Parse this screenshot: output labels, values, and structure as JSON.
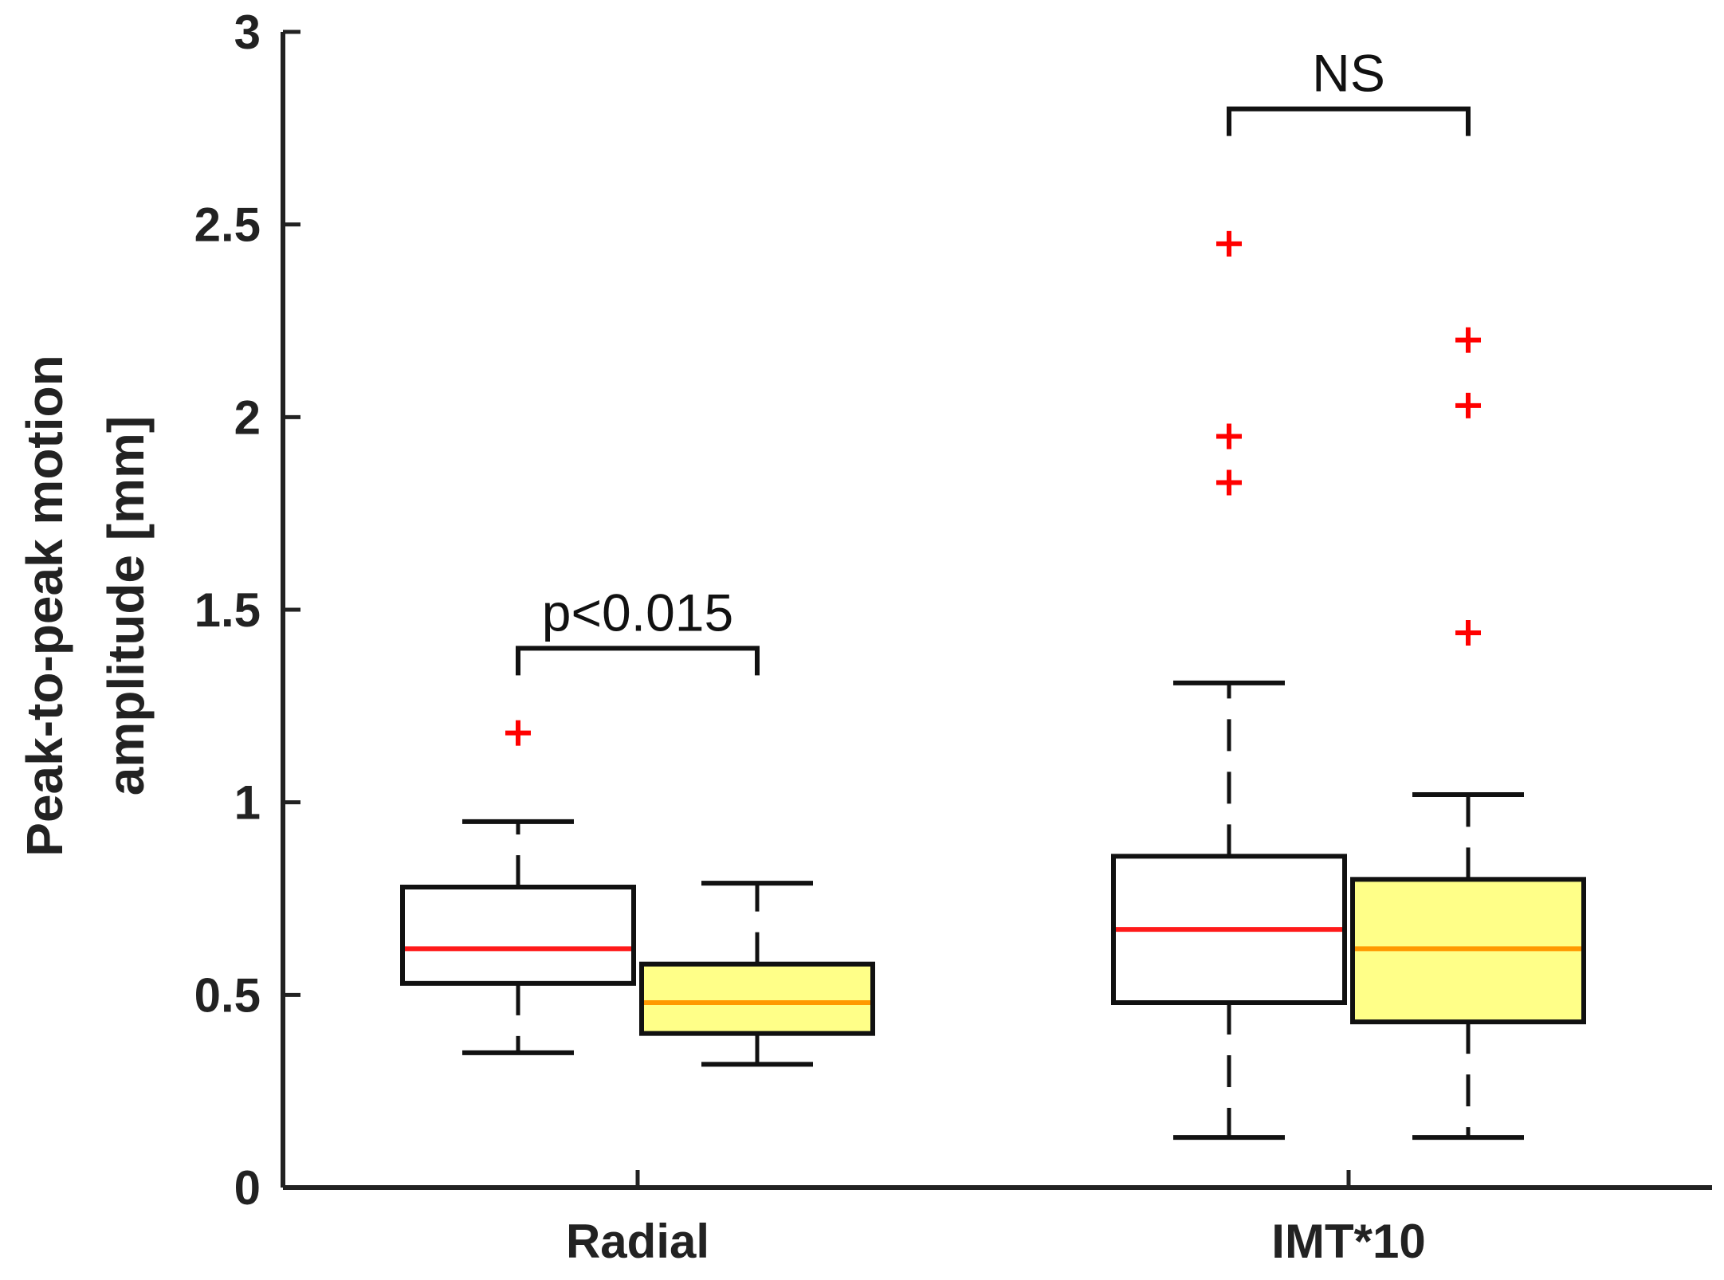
{
  "chart_data": {
    "type": "box",
    "title": "",
    "xlabel": "",
    "ylabel_lines": [
      "Peak-to-peak motion",
      "amplitude [mm]"
    ],
    "ylim": [
      0,
      3
    ],
    "yticks": [
      {
        "value": 0,
        "label": "0"
      },
      {
        "value": 0.5,
        "label": "0.5"
      },
      {
        "value": 1,
        "label": "1"
      },
      {
        "value": 1.5,
        "label": "1.5"
      },
      {
        "value": 2,
        "label": "2"
      },
      {
        "value": 2.5,
        "label": "2.5"
      },
      {
        "value": 3,
        "label": "3"
      }
    ],
    "categories": [
      "Radial",
      "IMT*10"
    ],
    "colors": {
      "axis": "#222222",
      "box_edge": "#111111",
      "group1_fill": "#ffffff",
      "group2_fill": "#ffff88",
      "group1_median": "#ff1a1a",
      "group2_median": "#ff9900",
      "outlier": "#ff0000"
    },
    "boxes": [
      {
        "category": "Radial",
        "group": 1,
        "whisker_low": 0.35,
        "q1": 0.53,
        "median": 0.62,
        "q3": 0.78,
        "whisker_high": 0.95,
        "outliers": [
          1.18
        ]
      },
      {
        "category": "Radial",
        "group": 2,
        "whisker_low": 0.32,
        "q1": 0.4,
        "median": 0.48,
        "q3": 0.58,
        "whisker_high": 0.79,
        "outliers": []
      },
      {
        "category": "IMT*10",
        "group": 1,
        "whisker_low": 0.13,
        "q1": 0.48,
        "median": 0.67,
        "q3": 0.86,
        "whisker_high": 1.31,
        "outliers": [
          2.45,
          1.95,
          1.83
        ]
      },
      {
        "category": "IMT*10",
        "group": 2,
        "whisker_low": 0.13,
        "q1": 0.43,
        "median": 0.62,
        "q3": 0.8,
        "whisker_high": 1.02,
        "outliers": [
          2.2,
          2.03,
          1.44
        ]
      }
    ],
    "annotations": [
      {
        "text": "p<0.015",
        "category": "Radial",
        "bracket_y": 1.4
      },
      {
        "text": "NS",
        "category": "IMT*10",
        "bracket_y": 2.8
      }
    ]
  }
}
